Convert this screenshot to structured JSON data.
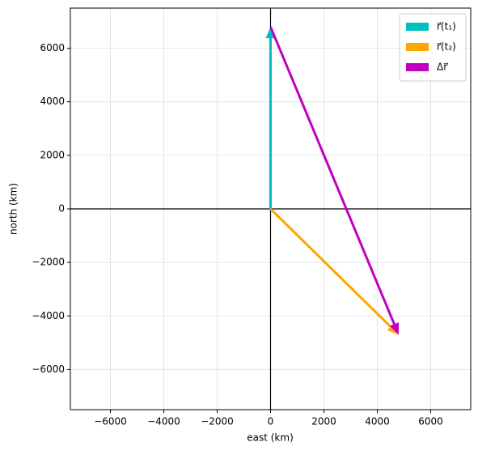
{
  "chart_data": {
    "type": "quiver",
    "xlabel": "east (km)",
    "ylabel": "north (km)",
    "xlim": [
      -7500,
      7500
    ],
    "ylim": [
      -7500,
      7500
    ],
    "xticks": [
      {
        "value": -6000,
        "label": "−6000"
      },
      {
        "value": -4000,
        "label": "−4000"
      },
      {
        "value": -2000,
        "label": "−2000"
      },
      0,
      2000,
      4000,
      6000
    ],
    "yticks": [
      {
        "value": -6000,
        "label": "−6000"
      },
      {
        "value": -4000,
        "label": "−4000"
      },
      {
        "value": -2000,
        "label": "−2000"
      },
      0,
      2000,
      4000,
      6000
    ],
    "grid": true,
    "legend": "upper right",
    "series": [
      {
        "name": "r⃗(t₁)",
        "color": "#00bfbf",
        "x0": 0,
        "y0": 0,
        "u": 0,
        "v": 6800
      },
      {
        "name": "r⃗(t₂)",
        "color": "#ffa500",
        "x0": 0,
        "y0": 0,
        "u": 4800,
        "v": -4700
      },
      {
        "name": "Δr⃗",
        "color": "#bf00bf",
        "x0": 0,
        "y0": 6800,
        "u": 4800,
        "v": -11500
      }
    ]
  }
}
